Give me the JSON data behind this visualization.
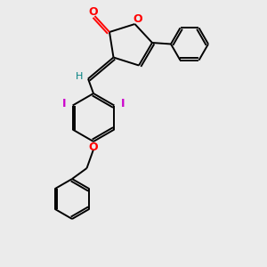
{
  "bg_color": "#ebebeb",
  "atom_colors": {
    "O": "#ff0000",
    "I": "#cc00cc",
    "H": "#008080",
    "C": "#000000"
  },
  "bond_color": "#000000",
  "bond_width": 1.4,
  "fig_width": 3.0,
  "fig_height": 3.0,
  "dpi": 100,
  "xlim": [
    0,
    10
  ],
  "ylim": [
    0,
    10
  ]
}
